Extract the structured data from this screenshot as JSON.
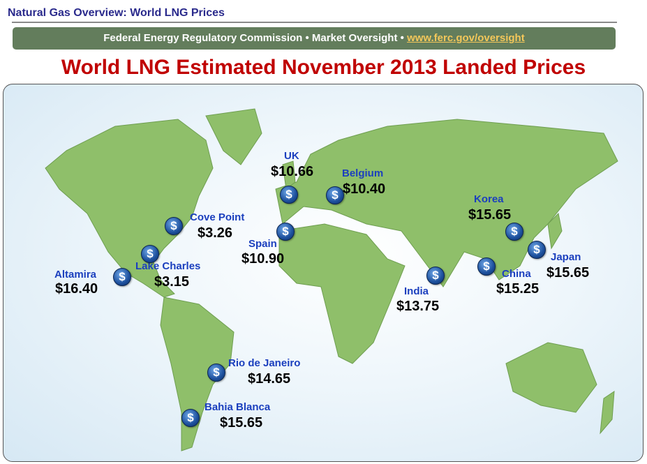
{
  "header": {
    "title": "Natural Gas Overview: World LNG Prices"
  },
  "banner": {
    "text": "Federal Energy Regulatory Commission • Market Oversight • ",
    "link": "www.ferc.gov/oversight"
  },
  "main_title": "World LNG Estimated November 2013 Landed Prices",
  "colors": {
    "title": "#c00000",
    "banner": "#637d5c",
    "link": "#f3c75a",
    "land": "#8fbf6a",
    "label": "#1b3fbe"
  },
  "marker_icon": "dollar-coin-icon",
  "marker_symbol": "$",
  "locations": [
    {
      "name": "UK",
      "price": "$10.66"
    },
    {
      "name": "Belgium",
      "price": "$10.40"
    },
    {
      "name": "Cove Point",
      "price": "$3.26"
    },
    {
      "name": "Spain",
      "price": "$10.90"
    },
    {
      "name": "Lake Charles",
      "price": "$3.15"
    },
    {
      "name": "Altamira",
      "price": "$16.40"
    },
    {
      "name": "Korea",
      "price": "$15.65"
    },
    {
      "name": "Japan",
      "price": "$15.65"
    },
    {
      "name": "China",
      "price": "$15.25"
    },
    {
      "name": "India",
      "price": "$13.75"
    },
    {
      "name": "Rio de Janeiro",
      "price": "$14.65"
    },
    {
      "name": "Bahia Blanca",
      "price": "$15.65"
    }
  ]
}
